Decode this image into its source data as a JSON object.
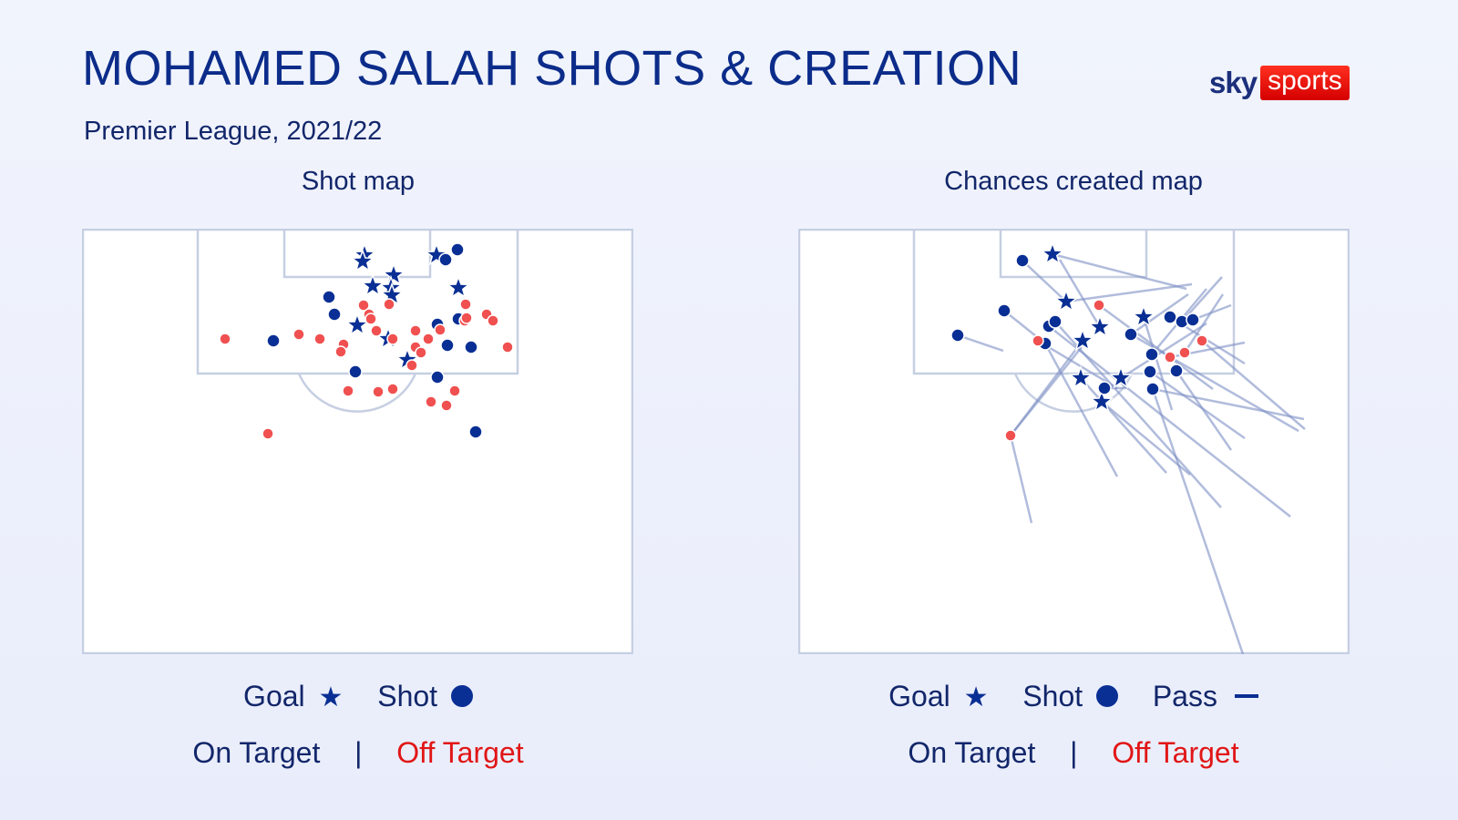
{
  "header": {
    "title": "MOHAMED SALAH SHOTS & CREATION",
    "subtitle": "Premier League, 2021/22",
    "logo_sky": "sky",
    "logo_sports": "sports"
  },
  "colors": {
    "on_target": "#0a2f94",
    "off_target": "#f05050",
    "pass_line": "#7d90c4",
    "pitch_lines": "#c6cfe2",
    "background": "#eef1fb"
  },
  "shot_map": {
    "title": "Shot map",
    "legend": {
      "goal_label": "Goal",
      "goal_icon": "★",
      "shot_label": "Shot",
      "on_target_label": "On Target",
      "separator": "|",
      "off_target_label": "Off Target"
    }
  },
  "chances_map": {
    "title": "Chances created map",
    "legend": {
      "goal_label": "Goal",
      "goal_icon": "★",
      "shot_label": "Shot",
      "pass_label": "Pass",
      "on_target_label": "On Target",
      "separator": "|",
      "off_target_label": "Off Target"
    }
  },
  "chart_data": [
    {
      "type": "scatter",
      "title": "Shot map",
      "coordinate_space": "pixels relative to pitch box 605x467 (attacking goal at top)",
      "legend": [
        "Goal ★",
        "Shot ●",
        "On Target",
        "Off Target"
      ],
      "series": [
        {
          "name": "Goal",
          "marker": "star",
          "points": [
            [
              310,
              29
            ],
            [
              308,
              36
            ],
            [
              389,
              29
            ],
            [
              342,
              51
            ],
            [
              339,
              65
            ],
            [
              340,
              73
            ],
            [
              319,
              63
            ],
            [
              413,
              65
            ],
            [
              302,
              106
            ],
            [
              336,
              121
            ],
            [
              357,
              144
            ]
          ]
        },
        {
          "name": "Shot On Target",
          "marker": "circle",
          "points": [
            [
              412,
              23
            ],
            [
              399,
              34
            ],
            [
              271,
              75
            ],
            [
              277,
              94
            ],
            [
              210,
              123
            ],
            [
              413,
              99
            ],
            [
              390,
              105
            ],
            [
              401,
              128
            ],
            [
              427,
              130
            ],
            [
              300,
              157
            ],
            [
              390,
              163
            ],
            [
              432,
              223
            ]
          ]
        },
        {
          "name": "Shot Off Target",
          "marker": "circle",
          "points": [
            [
              157,
              121
            ],
            [
              238,
              116
            ],
            [
              261,
              121
            ],
            [
              287,
              127
            ],
            [
              284,
              135
            ],
            [
              309,
              84
            ],
            [
              315,
              94
            ],
            [
              317,
              99
            ],
            [
              337,
              83
            ],
            [
              323,
              112
            ],
            [
              341,
              121
            ],
            [
              366,
              112
            ],
            [
              380,
              121
            ],
            [
              393,
              111
            ],
            [
              366,
              130
            ],
            [
              372,
              136
            ],
            [
              362,
              150
            ],
            [
              421,
              83
            ],
            [
              420,
              101
            ],
            [
              422,
              98
            ],
            [
              444,
              94
            ],
            [
              451,
              101
            ],
            [
              467,
              130
            ],
            [
              292,
              178
            ],
            [
              325,
              179
            ],
            [
              341,
              176
            ],
            [
              409,
              178
            ],
            [
              383,
              190
            ],
            [
              400,
              194
            ],
            [
              204,
              225
            ]
          ]
        }
      ]
    },
    {
      "type": "scatter",
      "title": "Chances created map",
      "coordinate_space": "pixels relative to pitch box 605x467 (attacking goal at top)",
      "legend": [
        "Goal ★",
        "Shot ●",
        "Pass —",
        "On Target",
        "Off Target"
      ],
      "series": [
        {
          "name": "Goal",
          "marker": "star",
          "points": [
            [
              279,
              28
            ],
            [
              294,
              80
            ],
            [
              331,
              108
            ],
            [
              312,
              123
            ],
            [
              379,
              97
            ],
            [
              310,
              164
            ],
            [
              354,
              164
            ],
            [
              333,
              190
            ]
          ]
        },
        {
          "name": "Shot On Target",
          "marker": "circle",
          "points": [
            [
              246,
              35
            ],
            [
              226,
              90
            ],
            [
              175,
              117
            ],
            [
              275,
              107
            ],
            [
              282,
              102
            ],
            [
              271,
              126
            ],
            [
              365,
              116
            ],
            [
              408,
              97
            ],
            [
              421,
              102
            ],
            [
              433,
              100
            ],
            [
              388,
              138
            ],
            [
              386,
              157
            ],
            [
              415,
              156
            ],
            [
              389,
              176
            ],
            [
              336,
              175
            ]
          ]
        },
        {
          "name": "Shot Off Target",
          "marker": "circle",
          "points": [
            [
              330,
              84
            ],
            [
              263,
              123
            ],
            [
              443,
              123
            ],
            [
              424,
              136
            ],
            [
              408,
              141
            ],
            [
              233,
              227
            ]
          ]
        },
        {
          "name": "Pass",
          "marker": "line",
          "segments": [
            [
              [
                279,
                28
              ],
              [
                426,
                66
              ]
            ],
            [
              [
                294,
                80
              ],
              [
                432,
                61
              ]
            ],
            [
              [
                246,
                35
              ],
              [
                294,
                80
              ]
            ],
            [
              [
                175,
                117
              ],
              [
                225,
                134
              ]
            ],
            [
              [
                226,
                90
              ],
              [
                271,
                126
              ]
            ],
            [
              [
                330,
                84
              ],
              [
                455,
                176
              ]
            ],
            [
              [
                271,
                126
              ],
              [
                350,
                272
              ]
            ],
            [
              [
                282,
                102
              ],
              [
                464,
                306
              ]
            ],
            [
              [
                275,
                107
              ],
              [
                540,
                316
              ]
            ],
            [
              [
                312,
                123
              ],
              [
                233,
                227
              ]
            ],
            [
              [
                233,
                227
              ],
              [
                256,
                323
              ]
            ],
            [
              [
                365,
                116
              ],
              [
                549,
                222
              ]
            ],
            [
              [
                408,
                97
              ],
              [
                490,
                148
              ]
            ],
            [
              [
                421,
                102
              ],
              [
                465,
                53
              ]
            ],
            [
              [
                433,
                100
              ],
              [
                475,
                84
              ]
            ],
            [
              [
                388,
                138
              ],
              [
                448,
                66
              ]
            ],
            [
              [
                386,
                157
              ],
              [
                490,
                230
              ]
            ],
            [
              [
                415,
                156
              ],
              [
                475,
                243
              ]
            ],
            [
              [
                389,
                176
              ],
              [
                555,
                209
              ]
            ],
            [
              [
                389,
                176
              ],
              [
                488,
                467
              ]
            ],
            [
              [
                336,
                175
              ],
              [
                360,
                175
              ]
            ],
            [
              [
                333,
                190
              ],
              [
                430,
                270
              ]
            ],
            [
              [
                310,
                164
              ],
              [
                404,
                268
              ]
            ],
            [
              [
                354,
                164
              ],
              [
                448,
                104
              ]
            ],
            [
              [
                443,
                123
              ],
              [
                556,
                220
              ]
            ],
            [
              [
                331,
                108
              ],
              [
                287,
                34
              ]
            ],
            [
              [
                379,
                97
              ],
              [
                410,
                199
              ]
            ],
            [
              [
                365,
                116
              ],
              [
                428,
                72
              ]
            ],
            [
              [
                408,
                141
              ],
              [
                490,
                125
              ]
            ],
            [
              [
                424,
                136
              ],
              [
                466,
                72
              ]
            ],
            [
              [
                233,
                227
              ],
              [
                311,
                130
              ]
            ],
            [
              [
                263,
                123
              ],
              [
                350,
                175
              ]
            ]
          ]
        }
      ]
    }
  ]
}
